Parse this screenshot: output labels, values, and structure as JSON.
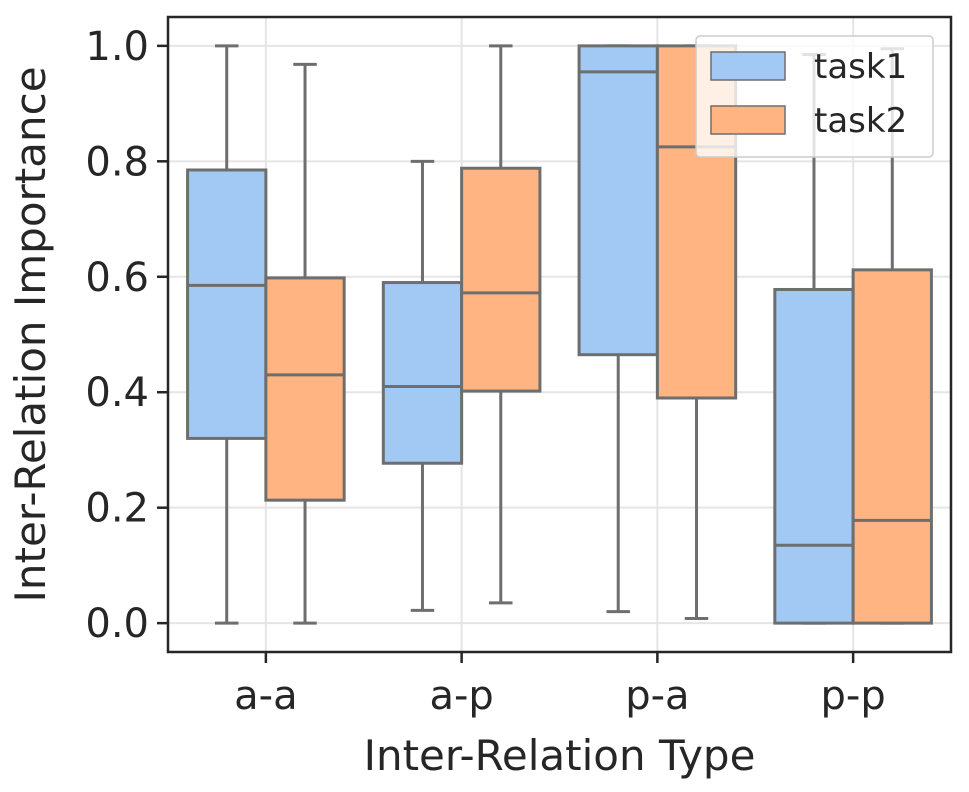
{
  "chart_data": {
    "type": "box",
    "title": "",
    "xlabel": "Inter-Relation Type",
    "ylabel": "Inter-Relation Importance",
    "categories": [
      "a-a",
      "a-p",
      "p-a",
      "p-p"
    ],
    "ylim": [
      -0.05,
      1.05
    ],
    "yticks": [
      0.0,
      0.2,
      0.4,
      0.6,
      0.8,
      1.0
    ],
    "ytick_labels": [
      "0.0",
      "0.2",
      "0.4",
      "0.6",
      "0.8",
      "1.0"
    ],
    "grid": true,
    "legend_position": "top-right",
    "series": [
      {
        "name": "task1",
        "color": "#a1c9f4",
        "boxes": [
          {
            "whisker_low": 0.0,
            "q1": 0.32,
            "median": 0.585,
            "q3": 0.785,
            "whisker_high": 1.0
          },
          {
            "whisker_low": 0.022,
            "q1": 0.277,
            "median": 0.41,
            "q3": 0.59,
            "whisker_high": 0.8
          },
          {
            "whisker_low": 0.02,
            "q1": 0.465,
            "median": 0.955,
            "q3": 1.0,
            "whisker_high": 1.0
          },
          {
            "whisker_low": 0.0,
            "q1": 0.0,
            "median": 0.135,
            "q3": 0.578,
            "whisker_high": 0.985
          }
        ]
      },
      {
        "name": "task2",
        "color": "#ffb482",
        "boxes": [
          {
            "whisker_low": 0.0,
            "q1": 0.213,
            "median": 0.43,
            "q3": 0.598,
            "whisker_high": 0.968
          },
          {
            "whisker_low": 0.035,
            "q1": 0.402,
            "median": 0.572,
            "q3": 0.788,
            "whisker_high": 1.0
          },
          {
            "whisker_low": 0.008,
            "q1": 0.39,
            "median": 0.825,
            "q3": 1.0,
            "whisker_high": 1.0
          },
          {
            "whisker_low": 0.0,
            "q1": 0.0,
            "median": 0.178,
            "q3": 0.612,
            "whisker_high": 0.995
          }
        ]
      }
    ]
  }
}
